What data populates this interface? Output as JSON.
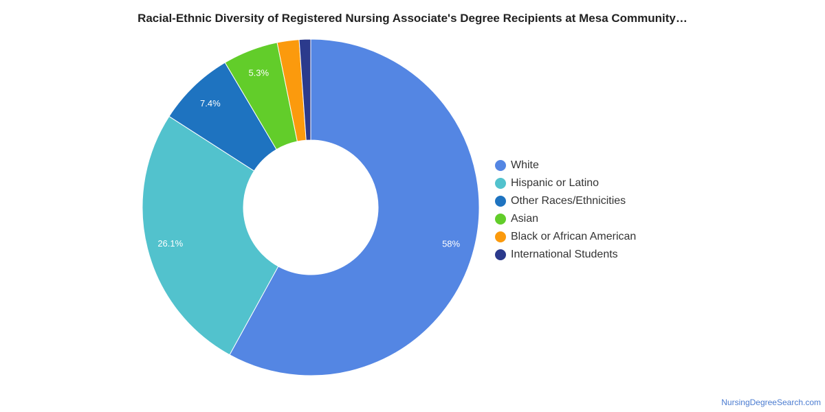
{
  "chart_data": {
    "type": "pie",
    "donut": true,
    "title": "Racial-Ethnic Diversity of Registered Nursing Associate's Degree Recipients at Mesa Community…",
    "categories": [
      "White",
      "Hispanic or Latino",
      "Other Races/Ethnicities",
      "Asian",
      "Black or African American",
      "International Students"
    ],
    "values": [
      58,
      26.1,
      7.4,
      5.3,
      2.1,
      1.1
    ],
    "value_labels": [
      "58%",
      "26.1%",
      "7.4%",
      "5.3%",
      "",
      ""
    ],
    "colors": [
      "#5486e3",
      "#52c2cd",
      "#1e73c0",
      "#62cd2a",
      "#fb9a0d",
      "#2b3a8c"
    ],
    "legend_position": "right"
  },
  "source": "NursingDegreeSearch.com"
}
